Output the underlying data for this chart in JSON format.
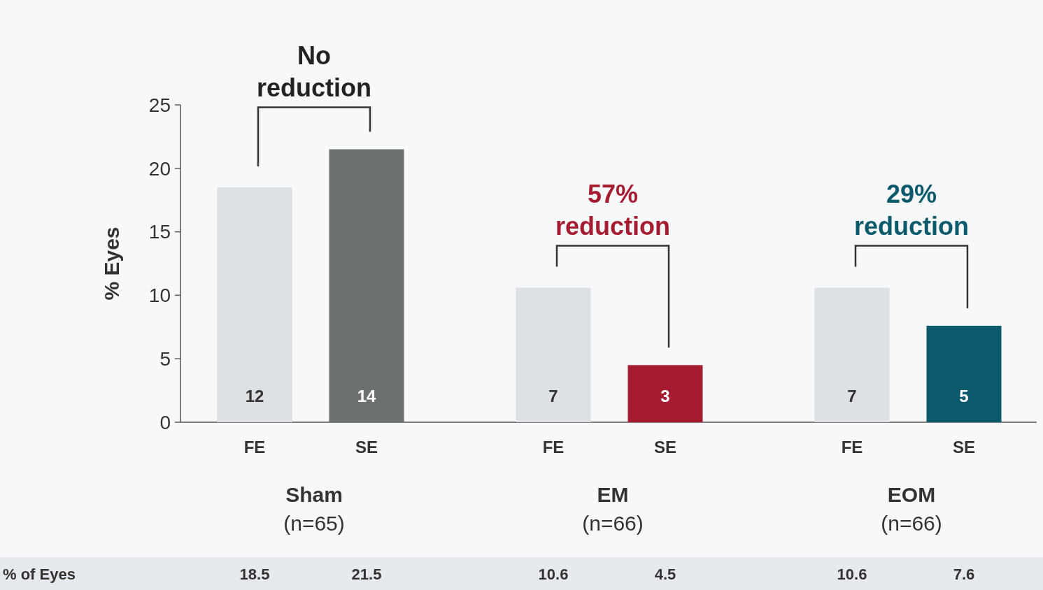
{
  "chart_data": {
    "type": "bar",
    "categories": [
      "FE",
      "SE",
      "FE",
      "SE",
      "FE",
      "SE"
    ],
    "values": [
      18.5,
      21.5,
      10.6,
      4.5,
      10.6,
      7.6
    ],
    "colors": [
      "#dde1e6",
      "#6b7070",
      "#dde1e6",
      "#a51c30",
      "#dde1e6",
      "#0b5a6b"
    ],
    "data_labels": true,
    "ylabel": "% Eyes",
    "ylim": [
      0,
      25
    ],
    "yticks": [
      0,
      5,
      10,
      15,
      20,
      25
    ],
    "grid": false,
    "annotations": [
      "No reduction",
      "57% reduction",
      "29% reduction",
      "Sham (n=65)",
      "EM (n=66)",
      "EOM (n=66)",
      "% of Eyes",
      "12",
      "14",
      "7",
      "3",
      "7",
      "5"
    ]
  }
}
